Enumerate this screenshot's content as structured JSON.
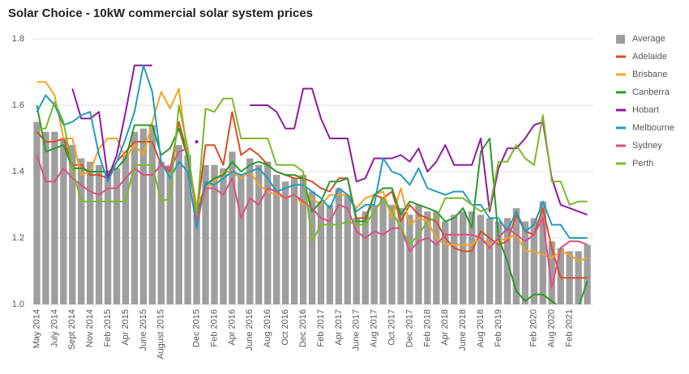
{
  "chart_data": {
    "type": "combo",
    "title": "Solar Choice - 10kW commercial solar system prices",
    "categories": [
      "May 2014",
      null,
      "July 2014",
      null,
      "Sept 2014",
      null,
      "Nov 2014",
      null,
      "Feb 2015",
      null,
      "Apr 2015",
      null,
      "June 2015",
      null,
      "August 2015",
      null,
      null,
      null,
      "Dec 2015",
      null,
      "Feb 2016",
      null,
      "Apr 2016",
      null,
      "June 2016",
      null,
      "Aug 2016",
      null,
      "Oct 2016",
      null,
      "Dec 2016",
      null,
      "Feb 2017",
      null,
      "Apr 2017",
      null,
      "June 2017",
      null,
      "Aug 2017",
      null,
      "Oct 2017",
      null,
      "Dec 2017",
      null,
      "Feb 2018",
      null,
      "Apr 2018",
      null,
      "June 2018",
      null,
      "Aug 2018",
      null,
      "Feb 2019",
      null,
      null,
      null,
      "Feb 2020",
      null,
      "Aug 2020",
      null,
      "Feb 2021",
      null,
      null
    ],
    "bar_series": {
      "name": "Average",
      "color": "#9e9e9e",
      "values": [
        1.55,
        1.52,
        1.52,
        1.5,
        1.48,
        1.44,
        1.43,
        1.42,
        1.4,
        1.41,
        1.45,
        1.52,
        1.53,
        1.54,
        1.43,
        1.42,
        1.48,
        1.45,
        1.27,
        1.42,
        1.42,
        1.41,
        1.46,
        1.39,
        1.44,
        1.42,
        1.43,
        1.39,
        1.37,
        1.38,
        1.39,
        1.34,
        1.31,
        1.3,
        1.35,
        1.33,
        1.26,
        1.28,
        1.3,
        1.32,
        1.3,
        1.29,
        1.27,
        1.3,
        1.28,
        1.28,
        1.25,
        1.27,
        1.28,
        1.28,
        1.27,
        1.26,
        1.25,
        1.26,
        1.29,
        1.25,
        1.26,
        1.31,
        1.19,
        1.17,
        1.16,
        1.16,
        1.18
      ]
    },
    "series": [
      {
        "name": "Adelaide",
        "color": "#d94d26",
        "values": [
          1.52,
          1.49,
          1.49,
          1.5,
          1.42,
          1.42,
          1.39,
          1.39,
          1.38,
          1.43,
          1.46,
          1.49,
          1.49,
          1.49,
          1.42,
          1.4,
          1.55,
          1.45,
          1.27,
          1.48,
          1.48,
          1.42,
          1.58,
          1.45,
          1.47,
          1.45,
          1.42,
          1.4,
          1.39,
          1.38,
          1.38,
          1.37,
          1.35,
          1.34,
          1.38,
          1.38,
          1.26,
          1.26,
          1.33,
          1.32,
          1.34,
          1.25,
          1.3,
          1.27,
          1.26,
          1.25,
          1.2,
          1.17,
          1.16,
          1.16,
          1.22,
          1.2,
          1.18,
          1.19,
          1.27,
          1.22,
          1.21,
          1.29,
          1.17,
          1.08,
          1.08,
          1.08,
          1.08
        ]
      },
      {
        "name": "Brisbane",
        "color": "#f4a322",
        "values": [
          1.67,
          1.67,
          1.63,
          1.5,
          1.5,
          1.39,
          1.4,
          1.47,
          1.5,
          1.5,
          1.44,
          1.48,
          1.45,
          1.55,
          1.64,
          1.59,
          1.65,
          1.44,
          1.3,
          1.35,
          1.37,
          1.4,
          1.4,
          1.38,
          1.4,
          1.36,
          1.34,
          1.33,
          1.32,
          1.33,
          1.3,
          1.32,
          1.3,
          1.33,
          1.33,
          1.33,
          1.29,
          1.32,
          1.33,
          1.34,
          1.26,
          1.35,
          1.24,
          1.26,
          1.25,
          1.2,
          1.18,
          1.18,
          1.18,
          1.18,
          1.2,
          1.18,
          1.19,
          1.2,
          1.21,
          1.16,
          1.16,
          1.15,
          1.14,
          1.16,
          1.15,
          1.13,
          1.14
        ]
      },
      {
        "name": "Canberra",
        "color": "#2a9a2a",
        "values": [
          1.6,
          1.46,
          1.47,
          1.48,
          1.41,
          1.41,
          1.4,
          1.4,
          1.4,
          1.41,
          1.44,
          1.54,
          1.54,
          1.54,
          1.45,
          1.47,
          1.53,
          1.44,
          1.27,
          1.36,
          1.38,
          1.39,
          1.43,
          1.4,
          1.42,
          1.43,
          1.42,
          1.4,
          1.39,
          1.39,
          1.38,
          1.28,
          1.31,
          1.37,
          1.37,
          1.38,
          1.25,
          1.25,
          1.33,
          1.35,
          1.35,
          1.27,
          1.31,
          1.3,
          1.29,
          1.28,
          1.25,
          1.26,
          1.29,
          1.23,
          1.46,
          1.5,
          1.2,
          1.13,
          1.04,
          1.01,
          1.03,
          1.03,
          1.01,
          0.99,
          0.95,
          0.99,
          1.07
        ]
      },
      {
        "name": "Hobart",
        "color": "#8e1a9c",
        "values": [
          null,
          null,
          null,
          null,
          1.65,
          1.56,
          1.56,
          1.58,
          1.38,
          1.45,
          1.58,
          1.72,
          1.72,
          1.72,
          null,
          null,
          null,
          null,
          1.49,
          null,
          null,
          null,
          null,
          null,
          1.6,
          1.6,
          1.6,
          1.58,
          1.53,
          1.53,
          1.65,
          1.65,
          1.56,
          1.5,
          1.5,
          1.5,
          1.37,
          1.38,
          1.44,
          1.44,
          1.44,
          1.45,
          1.43,
          1.47,
          1.4,
          1.43,
          1.48,
          1.42,
          1.42,
          1.42,
          1.5,
          1.28,
          1.41,
          1.47,
          1.47,
          1.5,
          1.54,
          1.55,
          1.38,
          1.3,
          1.29,
          1.28,
          1.27
        ]
      },
      {
        "name": "Melbourne",
        "color": "#1f9cc0",
        "values": [
          1.58,
          1.63,
          1.6,
          1.54,
          1.55,
          1.57,
          1.58,
          1.45,
          1.37,
          1.43,
          1.5,
          1.58,
          1.72,
          1.64,
          1.43,
          1.38,
          1.43,
          1.4,
          1.23,
          1.37,
          1.36,
          1.38,
          1.4,
          1.39,
          1.4,
          1.41,
          1.38,
          1.34,
          1.35,
          1.36,
          1.36,
          1.34,
          1.32,
          1.29,
          1.35,
          1.33,
          1.28,
          1.3,
          1.3,
          1.44,
          1.4,
          1.39,
          1.36,
          1.41,
          1.35,
          1.34,
          1.33,
          1.34,
          1.34,
          1.3,
          1.3,
          1.26,
          1.26,
          1.22,
          1.28,
          1.22,
          1.24,
          1.31,
          1.24,
          1.24,
          1.2,
          1.2,
          1.2
        ]
      },
      {
        "name": "Sydney",
        "color": "#dd4f86",
        "values": [
          1.45,
          1.37,
          1.37,
          1.41,
          1.38,
          1.36,
          1.34,
          1.33,
          1.35,
          1.35,
          1.38,
          1.41,
          1.39,
          1.39,
          1.42,
          1.41,
          1.46,
          1.47,
          1.25,
          1.35,
          1.35,
          1.33,
          1.38,
          1.26,
          1.32,
          1.3,
          1.35,
          1.34,
          1.32,
          1.33,
          1.31,
          1.29,
          1.26,
          1.25,
          1.3,
          1.29,
          1.22,
          1.2,
          1.22,
          1.21,
          1.23,
          1.23,
          1.16,
          1.19,
          1.2,
          1.18,
          1.21,
          1.21,
          1.21,
          1.21,
          1.2,
          1.17,
          1.2,
          1.23,
          1.21,
          1.19,
          1.21,
          1.26,
          1.05,
          1.17,
          1.19,
          1.19,
          1.18
        ]
      },
      {
        "name": "Perth",
        "color": "#7cb82a",
        "values": [
          1.53,
          1.53,
          1.61,
          1.55,
          1.41,
          1.31,
          1.31,
          1.31,
          1.31,
          1.31,
          1.31,
          1.42,
          1.42,
          1.42,
          1.31,
          1.32,
          1.6,
          1.47,
          1.27,
          1.59,
          1.58,
          1.62,
          1.62,
          1.5,
          1.5,
          1.5,
          1.5,
          1.42,
          1.42,
          1.42,
          1.4,
          1.19,
          1.24,
          1.24,
          1.24,
          1.25,
          1.24,
          1.24,
          1.28,
          1.32,
          1.28,
          1.23,
          1.18,
          1.21,
          1.25,
          1.26,
          1.32,
          1.32,
          1.32,
          1.3,
          1.28,
          1.29,
          1.43,
          1.43,
          1.48,
          1.44,
          1.42,
          1.57,
          1.37,
          1.37,
          1.3,
          1.31,
          1.31
        ]
      }
    ],
    "ylim": [
      1.0,
      1.8
    ],
    "yticks": [
      {
        "value": 1.0,
        "label": "1.0"
      },
      1.2,
      1.4,
      1.6,
      1.8
    ],
    "grid": true,
    "legend": "right"
  }
}
